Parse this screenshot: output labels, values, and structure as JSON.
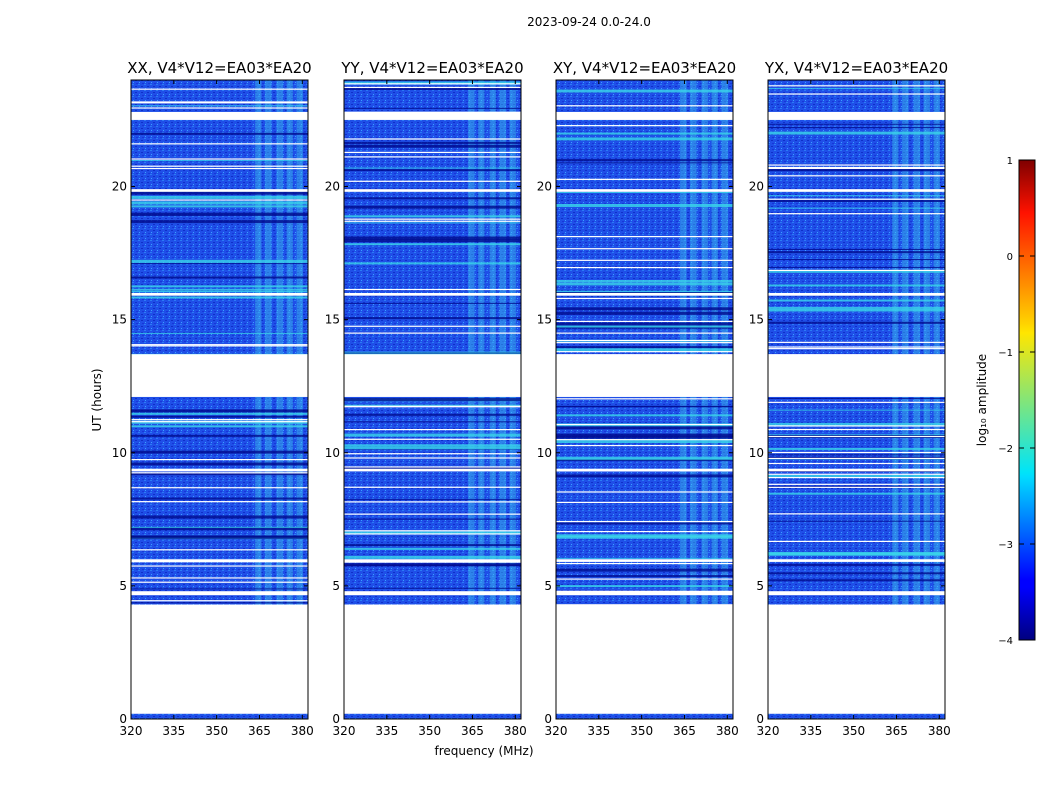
{
  "figure_title": "2023-09-24 0.0-24.0",
  "chart_data": {
    "type": "heatmap",
    "title": "2023-09-24 0.0-24.0",
    "xlabel": "frequency (MHz)",
    "ylabel": "UT (hours)",
    "xlim": [
      320,
      382
    ],
    "ylim": [
      0,
      24
    ],
    "x_ticks": [
      320,
      335,
      350,
      365,
      380
    ],
    "y_ticks": [
      0,
      5,
      10,
      15,
      20
    ],
    "colorbar": {
      "label": "log₁₀ amplitude",
      "range": [
        -4,
        1
      ],
      "ticks": [
        1,
        0,
        -1,
        -2,
        -3,
        -4
      ],
      "colormap": "jet"
    },
    "data_time_ranges_hours": [
      [
        0.0,
        0.2
      ],
      [
        4.3,
        12.1
      ],
      [
        13.7,
        24.0
      ]
    ],
    "flagged_time_bands_hours": [
      [
        0.2,
        4.3
      ],
      [
        12.1,
        13.7
      ],
      [
        22.5,
        22.8
      ],
      [
        4.65,
        4.8
      ],
      [
        5.9,
        6.0
      ],
      [
        9.3,
        9.4
      ],
      [
        15.9,
        16.0
      ],
      [
        19.8,
        19.9
      ]
    ],
    "rfi_frequency_band_mhz": [
      363,
      382
    ],
    "typical_background_log_amplitude": -2.8,
    "panels": [
      {
        "title": "XX, V4*V12=EA03*EA20",
        "polarization": "XX"
      },
      {
        "title": "YY, V4*V12=EA03*EA20",
        "polarization": "YY"
      },
      {
        "title": "XY, V4*V12=EA03*EA20",
        "polarization": "XY"
      },
      {
        "title": "YX, V4*V12=EA03*EA20",
        "polarization": "YX"
      }
    ]
  }
}
